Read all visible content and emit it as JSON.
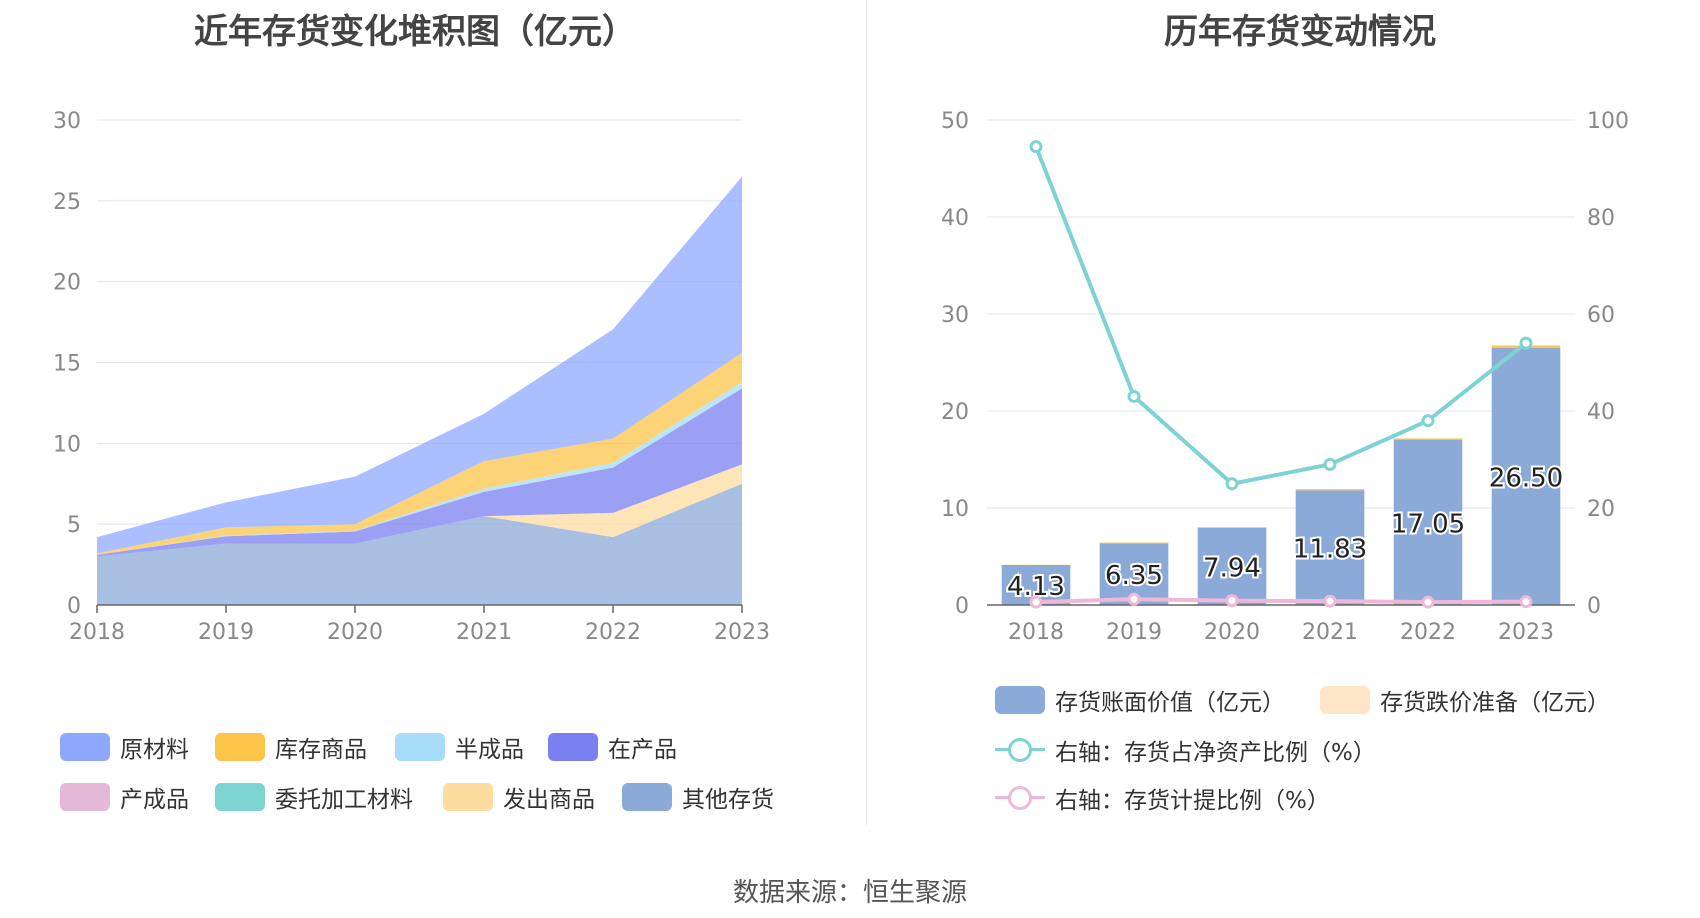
{
  "left_chart": {
    "title": "近年存货变化堆积图（亿元）",
    "y_ticks": [
      "0",
      "5",
      "10",
      "15",
      "20",
      "25",
      "30"
    ],
    "legend": [
      {
        "label": "原材料",
        "color": "#8fa8ff"
      },
      {
        "label": "库存商品",
        "color": "#fbc54a"
      },
      {
        "label": "半成品",
        "color": "#a6dcf7"
      },
      {
        "label": "在产品",
        "color": "#7b80f0"
      },
      {
        "label": "产成品",
        "color": "#e6b8d8"
      },
      {
        "label": "委托加工材料",
        "color": "#7dd3cf"
      },
      {
        "label": "发出商品",
        "color": "#fddca0"
      },
      {
        "label": "其他存货",
        "color": "#8caad8"
      }
    ]
  },
  "right_chart": {
    "title": "历年存货变动情况",
    "y_left_ticks": [
      "0",
      "10",
      "20",
      "30",
      "40",
      "50"
    ],
    "y_right_ticks": [
      "0",
      "20",
      "40",
      "60",
      "80",
      "100"
    ],
    "legend": [
      {
        "label": "存货账面价值（亿元）",
        "color": "#8caad8",
        "kind": "bar"
      },
      {
        "label": "存货跌价准备（亿元）",
        "color": "#fde6c8",
        "kind": "bar"
      },
      {
        "label": "右轴：存货占净资产比例（%）",
        "color": "#7dd3d3",
        "kind": "line"
      },
      {
        "label": "右轴：存货计提比例（%）",
        "color": "#f0b8d8",
        "kind": "line"
      }
    ]
  },
  "chart_data": [
    {
      "type": "area",
      "stacked": true,
      "title": "近年存货变化堆积图（亿元）",
      "categories": [
        "2018",
        "2019",
        "2020",
        "2021",
        "2022",
        "2023"
      ],
      "ylim": [
        0,
        30
      ],
      "grid": true,
      "legend_position": "bottom",
      "series": [
        {
          "name": "其他存货",
          "values": [
            3.0,
            3.8,
            3.8,
            5.5,
            4.2,
            7.5
          ]
        },
        {
          "name": "发出商品",
          "values": [
            0.0,
            0.0,
            0.0,
            0.0,
            1.5,
            1.2
          ]
        },
        {
          "name": "委托加工材料",
          "values": [
            0.0,
            0.0,
            0.0,
            0.0,
            0.0,
            0.0
          ]
        },
        {
          "name": "产成品",
          "values": [
            0.0,
            0.0,
            0.0,
            0.0,
            0.0,
            0.0
          ]
        },
        {
          "name": "在产品",
          "values": [
            0.1,
            0.45,
            0.75,
            1.5,
            2.8,
            4.7
          ]
        },
        {
          "name": "半成品",
          "values": [
            0.0,
            0.05,
            0.05,
            0.2,
            0.3,
            0.4
          ]
        },
        {
          "name": "库存商品",
          "values": [
            0.1,
            0.5,
            0.4,
            1.7,
            1.5,
            1.8
          ]
        },
        {
          "name": "原材料",
          "values": [
            1.0,
            1.55,
            2.94,
            2.93,
            6.75,
            10.9
          ]
        }
      ]
    },
    {
      "type": "bar",
      "title": "历年存货变动情况",
      "categories": [
        "2018",
        "2019",
        "2020",
        "2021",
        "2022",
        "2023"
      ],
      "ylim_left": [
        0,
        50
      ],
      "ylim_right": [
        0,
        100
      ],
      "grid": true,
      "legend_position": "bottom",
      "series": [
        {
          "name": "存货账面价值（亿元）",
          "type": "bar",
          "axis": "left",
          "values": [
            4.13,
            6.35,
            7.94,
            11.83,
            17.05,
            26.5
          ],
          "labels": [
            "4.13",
            "6.35",
            "7.94",
            "11.83",
            "17.05",
            "26.50"
          ]
        },
        {
          "name": "存货跌价准备（亿元）",
          "type": "bar",
          "axis": "left",
          "values": [
            0.02,
            0.08,
            0.08,
            0.12,
            0.12,
            0.25
          ]
        },
        {
          "name": "右轴：存货占净资产比例（%）",
          "type": "line",
          "axis": "right",
          "values": [
            94.5,
            43,
            25,
            29,
            38,
            54
          ]
        },
        {
          "name": "右轴：存货计提比例（%）",
          "type": "line",
          "axis": "right",
          "values": [
            0.6,
            1.2,
            0.9,
            0.8,
            0.6,
            0.7
          ]
        }
      ]
    }
  ],
  "source": "数据来源：恒生聚源"
}
